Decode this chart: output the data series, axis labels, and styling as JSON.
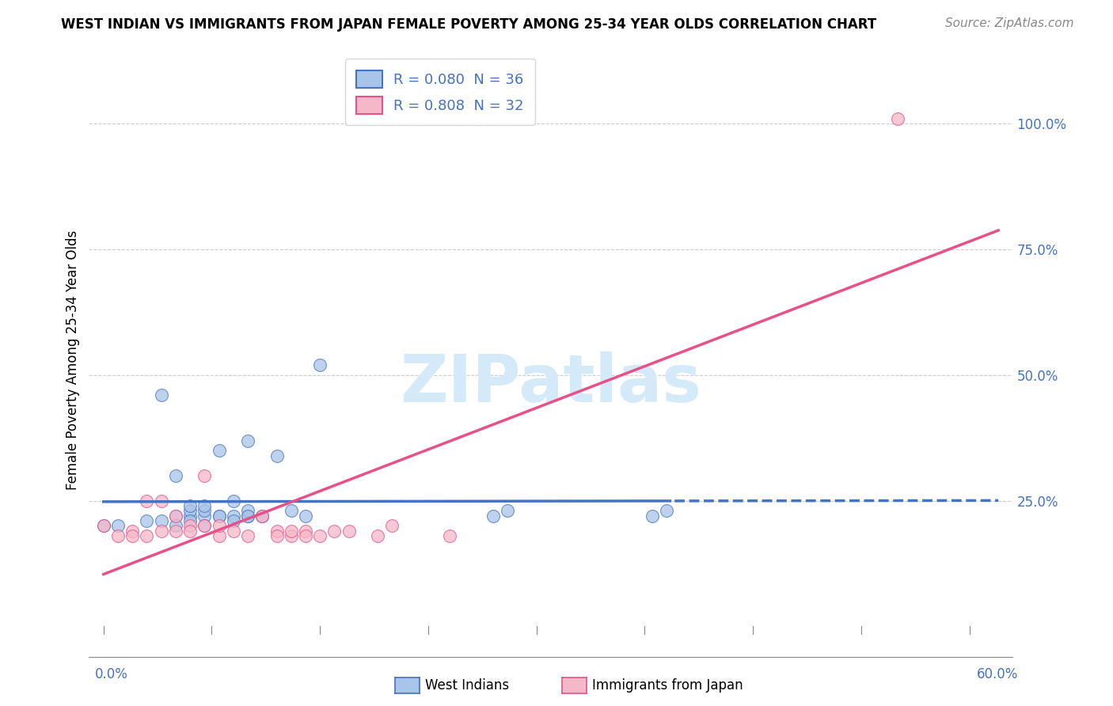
{
  "title": "WEST INDIAN VS IMMIGRANTS FROM JAPAN FEMALE POVERTY AMONG 25-34 YEAR OLDS CORRELATION CHART",
  "source": "Source: ZipAtlas.com",
  "ylabel": "Female Poverty Among 25-34 Year Olds",
  "color_blue_fill": "#a8c4e8",
  "color_blue_edge": "#4472c4",
  "color_pink_fill": "#f5b8c8",
  "color_pink_edge": "#e8508a",
  "west_indians_R": 0.08,
  "west_indians_N": 36,
  "immigrants_japan_R": 0.808,
  "immigrants_japan_N": 32,
  "grid_color": "#cccccc",
  "watermark_color": "#d5eaf8",
  "axis_label_color": "#4472c4",
  "west_indians_x": [
    0.0,
    0.01,
    0.03,
    0.04,
    0.05,
    0.05,
    0.06,
    0.06,
    0.06,
    0.07,
    0.07,
    0.07,
    0.08,
    0.08,
    0.09,
    0.09,
    0.1,
    0.1,
    0.1,
    0.11,
    0.12,
    0.13,
    0.14,
    0.15,
    0.27,
    0.28,
    0.38,
    0.39,
    0.05,
    0.06,
    0.07,
    0.08,
    0.04,
    0.09,
    0.1,
    0.11
  ],
  "west_indians_y": [
    0.2,
    0.2,
    0.21,
    0.21,
    0.22,
    0.3,
    0.22,
    0.23,
    0.24,
    0.22,
    0.23,
    0.24,
    0.22,
    0.35,
    0.22,
    0.25,
    0.22,
    0.23,
    0.37,
    0.22,
    0.34,
    0.23,
    0.22,
    0.52,
    0.22,
    0.23,
    0.22,
    0.23,
    0.2,
    0.21,
    0.2,
    0.22,
    0.46,
    0.21,
    0.22,
    0.22
  ],
  "japan_x": [
    0.0,
    0.01,
    0.02,
    0.02,
    0.03,
    0.03,
    0.04,
    0.04,
    0.05,
    0.05,
    0.06,
    0.06,
    0.07,
    0.07,
    0.08,
    0.08,
    0.09,
    0.1,
    0.11,
    0.12,
    0.13,
    0.14,
    0.15,
    0.16,
    0.17,
    0.19,
    0.2,
    0.24,
    0.55,
    0.12,
    0.13,
    0.14
  ],
  "japan_y": [
    0.2,
    0.18,
    0.19,
    0.18,
    0.25,
    0.18,
    0.19,
    0.25,
    0.22,
    0.19,
    0.2,
    0.19,
    0.2,
    0.3,
    0.18,
    0.2,
    0.19,
    0.18,
    0.22,
    0.19,
    0.18,
    0.19,
    0.18,
    0.19,
    0.19,
    0.18,
    0.2,
    0.18,
    1.01,
    0.18,
    0.19,
    0.18
  ],
  "yticks": [
    0.0,
    0.25,
    0.5,
    0.75,
    1.0
  ],
  "ytick_labels": [
    "",
    "25.0%",
    "50.0%",
    "75.0%",
    "100.0%"
  ]
}
